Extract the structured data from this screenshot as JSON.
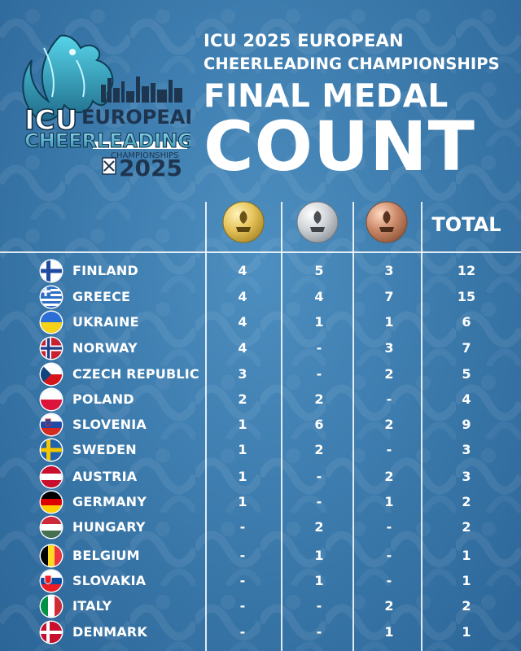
{
  "header": {
    "line1": "ICU 2025 EUROPEAN",
    "line2": "CHEERLEADING CHAMPIONSHIPS",
    "line3": "FINAL MEDAL",
    "line4": "COUNT"
  },
  "logo": {
    "icu": "ICU",
    "european": "EUROPEAN",
    "cheerleading": "CHEERLEADING",
    "championships": "CHAMPIONSHIPS",
    "year": "2025",
    "icon": "dragon-logo-icon"
  },
  "table": {
    "medal_icons": [
      "gold-medal-icon",
      "silver-medal-icon",
      "bronze-medal-icon"
    ],
    "total_label": "TOTAL",
    "rows": [
      {
        "country": "FINLAND",
        "flag": "finland-flag-icon",
        "gold": "4",
        "silver": "5",
        "bronze": "3",
        "total": "12"
      },
      {
        "country": "GREECE",
        "flag": "greece-flag-icon",
        "gold": "4",
        "silver": "4",
        "bronze": "7",
        "total": "15"
      },
      {
        "country": "UKRAINE",
        "flag": "ukraine-flag-icon",
        "gold": "4",
        "silver": "1",
        "bronze": "1",
        "total": "6"
      },
      {
        "country": "NORWAY",
        "flag": "norway-flag-icon",
        "gold": "4",
        "silver": "-",
        "bronze": "3",
        "total": "7"
      },
      {
        "country": "CZECH REPUBLIC",
        "flag": "czech-flag-icon",
        "gold": "3",
        "silver": "-",
        "bronze": "2",
        "total": "5"
      },
      {
        "country": "POLAND",
        "flag": "poland-flag-icon",
        "gold": "2",
        "silver": "2",
        "bronze": "-",
        "total": "4"
      },
      {
        "country": "SLOVENIA",
        "flag": "slovenia-flag-icon",
        "gold": "1",
        "silver": "6",
        "bronze": "2",
        "total": "9"
      },
      {
        "country": "SWEDEN",
        "flag": "sweden-flag-icon",
        "gold": "1",
        "silver": "2",
        "bronze": "-",
        "total": "3"
      },
      {
        "country": "AUSTRIA",
        "flag": "austria-flag-icon",
        "gold": "1",
        "silver": "-",
        "bronze": "2",
        "total": "3"
      },
      {
        "country": "GERMANY",
        "flag": "germany-flag-icon",
        "gold": "1",
        "silver": "-",
        "bronze": "1",
        "total": "2"
      },
      {
        "country": "HUNGARY",
        "flag": "hungary-flag-icon",
        "gold": "-",
        "silver": "2",
        "bronze": "-",
        "total": "2"
      },
      {
        "country": "BELGIUM",
        "flag": "belgium-flag-icon",
        "gold": "-",
        "silver": "1",
        "bronze": "-",
        "total": "1"
      },
      {
        "country": "SLOVAKIA",
        "flag": "slovakia-flag-icon",
        "gold": "-",
        "silver": "1",
        "bronze": "-",
        "total": "1"
      },
      {
        "country": "ITALY",
        "flag": "italy-flag-icon",
        "gold": "-",
        "silver": "-",
        "bronze": "2",
        "total": "2"
      },
      {
        "country": "DENMARK",
        "flag": "denmark-flag-icon",
        "gold": "-",
        "silver": "-",
        "bronze": "1",
        "total": "1"
      }
    ]
  },
  "colors": {
    "background": "#3a78aa",
    "gold": "#e6c35a",
    "silver": "#cfd3d8",
    "bronze": "#cc8a6a"
  }
}
